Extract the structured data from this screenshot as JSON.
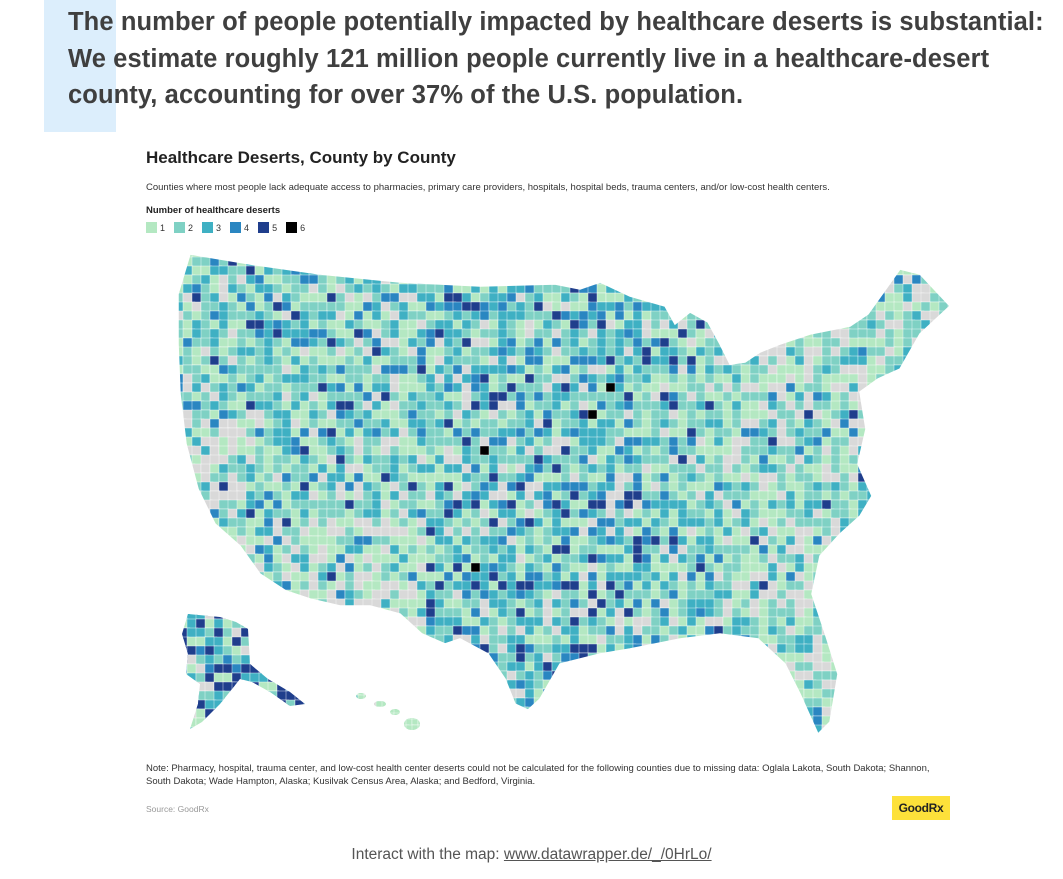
{
  "headline": "The number of people potentially impacted by healthcare deserts is substantial: We estimate roughly 121 million people currently live in a healthcare-desert county, accounting for over 37% of the U.S. population.",
  "chart": {
    "title": "Healthcare Deserts, County by County",
    "subtitle": "Counties where most people lack adequate access to pharmacies, primary care providers, hospitals, hospital beds, trauma centers, and/or low-cost health centers.",
    "legend_title": "Number of healthcare deserts",
    "legend": [
      {
        "label": "1",
        "color": "#b4e8c2"
      },
      {
        "label": "2",
        "color": "#7fd1c4"
      },
      {
        "label": "3",
        "color": "#3fb0c3"
      },
      {
        "label": "4",
        "color": "#2a86c1"
      },
      {
        "label": "5",
        "color": "#1f3e8c"
      },
      {
        "label": "6",
        "color": "#000000"
      }
    ],
    "no_data_color": "#d9d9d9",
    "note": "Note: Pharmacy, hospital, trauma center, and low-cost health center deserts could not be calculated for the following counties due to missing data: Oglala Lakota, South Dakota; Shannon, South Dakota; Wade Hampton, Alaska; Kusilvak Census Area, Alaska; and Bedford, Virginia.",
    "source": "Source: GoodRx",
    "logo": "GoodRx"
  },
  "footer": {
    "prefix": "Interact with the map: ",
    "link_text": "www.datawrapper.de/_/0HrLo/"
  }
}
